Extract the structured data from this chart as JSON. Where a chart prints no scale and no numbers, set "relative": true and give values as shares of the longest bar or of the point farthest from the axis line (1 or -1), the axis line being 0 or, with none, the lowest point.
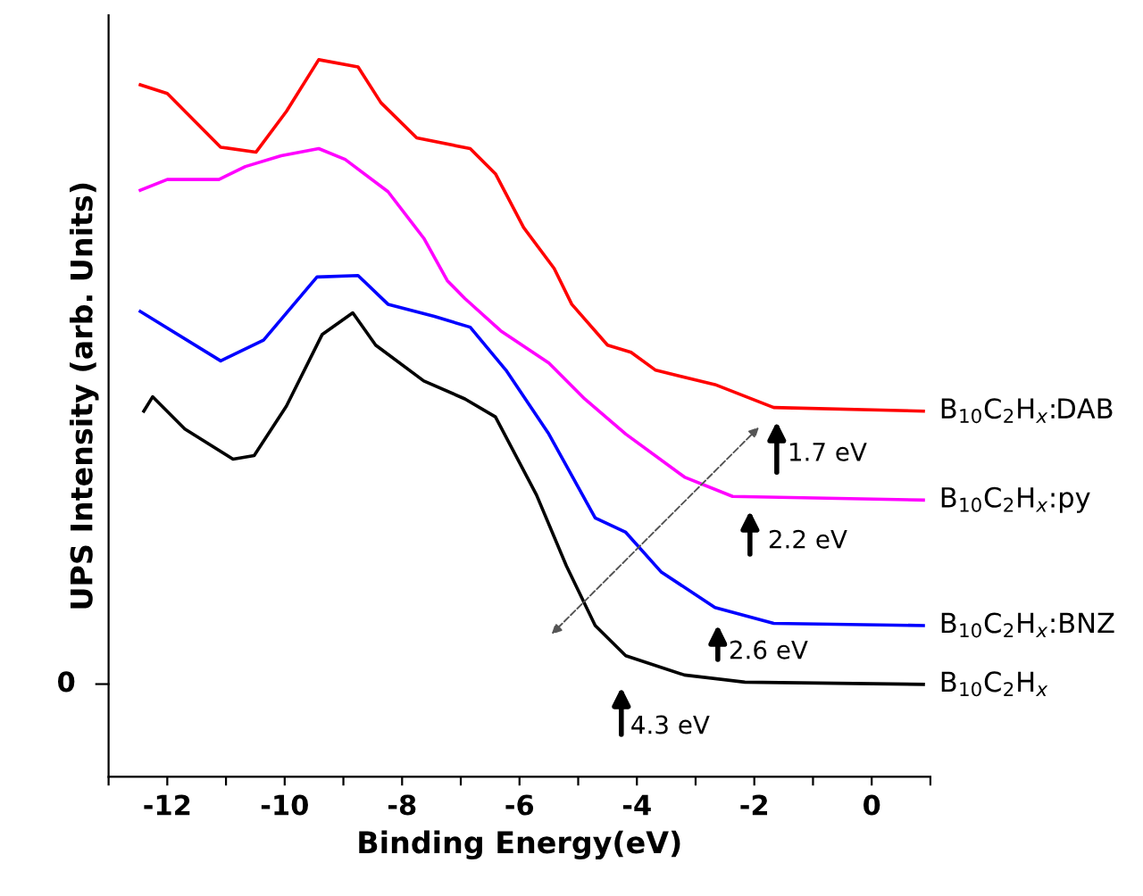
{
  "chart_data": {
    "type": "line",
    "relative": true,
    "xlabel": "Binding Energy(eV)",
    "ylabel": "UPS Intensity (arb. Units)",
    "xlim": [
      -13,
      1
    ],
    "xticks": [
      {
        "value": -13,
        "label": null
      },
      -12,
      {
        "value": -11,
        "label": null
      },
      -10,
      {
        "value": -9,
        "label": null
      },
      -8,
      {
        "value": -7,
        "label": null
      },
      -6,
      {
        "value": -5,
        "label": null
      },
      -4,
      {
        "value": -3,
        "label": null
      },
      -2,
      {
        "value": -1,
        "label": null
      },
      0,
      {
        "value": 1,
        "label": null
      }
    ],
    "grid": false,
    "legend": false,
    "marker": "none",
    "line_style": "solid",
    "series": [
      {
        "name": "B$_{10}$C$_{2}$H$_{x}$:DAB",
        "color": "#ff0000",
        "x": [
          -12.46,
          -12.0,
          -11.09,
          -10.49,
          -9.97,
          -9.42,
          -8.75,
          -8.36,
          -7.75,
          -6.84,
          -6.41,
          -5.93,
          -5.41,
          -5.11,
          -4.5,
          -4.1,
          -3.68,
          -2.67,
          -1.67,
          0.88
        ],
        "values": [
          0.965,
          0.953,
          0.878,
          0.871,
          0.928,
          1,
          0.99,
          0.94,
          0.891,
          0.876,
          0.841,
          0.766,
          0.709,
          0.659,
          0.602,
          0.592,
          0.567,
          0.547,
          0.515,
          0.51
        ]
      },
      {
        "name": "B$_{10}$C$_{2}$H$_{x}$:py",
        "color": "#ff00ff",
        "x": [
          -12.46,
          -12.0,
          -11.12,
          -10.67,
          -10.06,
          -9.42,
          -8.97,
          -8.24,
          -7.63,
          -7.23,
          -6.93,
          -6.32,
          -5.5,
          -4.89,
          -4.19,
          -3.19,
          -2.37,
          0.88
        ],
        "values": [
          0.818,
          0.833,
          0.833,
          0.851,
          0.866,
          0.876,
          0.861,
          0.816,
          0.751,
          0.692,
          0.667,
          0.622,
          0.577,
          0.527,
          0.478,
          0.418,
          0.391,
          0.386
        ]
      },
      {
        "name": "B$_{10}$C$_{2}$H$_{x}$:BNZ",
        "color": "#0000ff",
        "x": [
          -12.46,
          -11.09,
          -10.36,
          -9.45,
          -8.75,
          -8.24,
          -7.45,
          -6.84,
          -6.23,
          -5.5,
          -4.71,
          -4.19,
          -3.59,
          -2.67,
          -1.67,
          0.88
        ],
        "values": [
          0.649,
          0.58,
          0.609,
          0.697,
          0.699,
          0.659,
          0.642,
          0.627,
          0.567,
          0.478,
          0.361,
          0.341,
          0.286,
          0.236,
          0.214,
          0.211
        ]
      },
      {
        "name": "B$_{10}$C$_{2}$H$_{x}$",
        "color": "#000000",
        "x": [
          -12.4,
          -12.25,
          -11.7,
          -10.88,
          -10.52,
          -9.97,
          -9.36,
          -8.84,
          -8.45,
          -7.63,
          -6.93,
          -6.41,
          -5.71,
          -5.2,
          -4.71,
          -4.19,
          -3.19,
          -2.16,
          0.88
        ],
        "values": [
          0.51,
          0.53,
          0.485,
          0.443,
          0.448,
          0.517,
          0.617,
          0.647,
          0.602,
          0.552,
          0.527,
          0.502,
          0.393,
          0.294,
          0.211,
          0.169,
          0.142,
          0.132,
          0.129
        ]
      }
    ],
    "annotations": [
      "0",
      "1.7 eV",
      "2.2 eV",
      "2.6 eV",
      "4.3 eV"
    ]
  }
}
